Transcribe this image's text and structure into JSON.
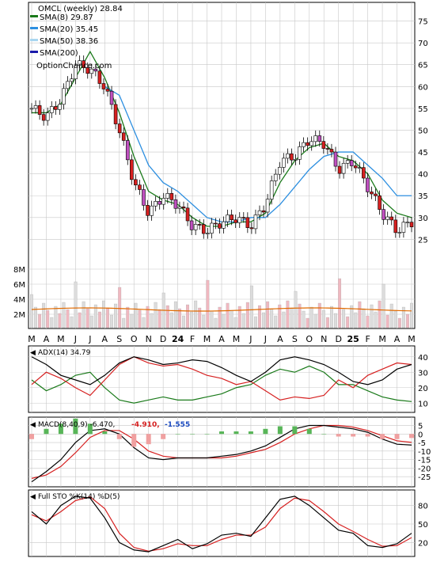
{
  "colors": {
    "up": "#ffffff",
    "down": "#d62020",
    "body_alt": "#c050c0",
    "sma8": "#1a7a1a",
    "sma20": "#2d8fe0",
    "sma50": "#a8d6f0",
    "sma200": "#1a1aaa",
    "sma_red": "#e02020",
    "bb_yellow": "#e6e600",
    "vol_up": "#dcdcdc",
    "vol_down": "#f0b8c0",
    "vol_avg": "#e06a00",
    "grid": "#c8c8c8",
    "adx": "#000000",
    "pdi": "#1a7a1a",
    "mdi": "#d62020",
    "macd": "#000000",
    "signal": "#d62020",
    "hist_pos": "#58b558",
    "hist_neg": "#f0a0a0",
    "stok": "#000000",
    "stod": "#d62020"
  },
  "price_panel": {
    "legend": [
      {
        "label": "OMCL (weekly) 28.84",
        "swatch": ""
      },
      {
        "label": "SMA(8) 29.87",
        "swatch": "#1a7a1a"
      },
      {
        "label": "SMA(20) 35.45",
        "swatch": "#2d8fe0"
      },
      {
        "label": "SMA(50) 38.36",
        "swatch": "#a8d6f0"
      },
      {
        "label": "SMA(200)",
        "swatch": "#1a1aaa"
      }
    ],
    "watermark": "OptionChance.com",
    "y_ticks": [
      75,
      70,
      65,
      60,
      55,
      50,
      45,
      40,
      35,
      30,
      25
    ],
    "vol_ticks": [
      "8M",
      "6M",
      "4M",
      "2M"
    ]
  },
  "x_axis": {
    "labels": [
      "M",
      "A",
      "M",
      "J",
      "J",
      "A",
      "S",
      "O",
      "N",
      "D",
      "24",
      "F",
      "M",
      "A",
      "M",
      "J",
      "J",
      "A",
      "S",
      "O",
      "N",
      "D",
      "25",
      "F",
      "M",
      "A",
      "M"
    ]
  },
  "adx_panel": {
    "label": "ADX(14) 34.79",
    "y_ticks": [
      40,
      30,
      20,
      10
    ]
  },
  "macd_panel": {
    "label": "MACD(8,40,9) -6.470,",
    "val2": "-4.910,",
    "val3": "-1.555",
    "y_ticks": [
      5,
      0,
      -5,
      -10,
      -15,
      -20,
      -25
    ]
  },
  "sto_panel": {
    "label": "Full STO %K(14) %D(5)",
    "y_ticks": [
      80,
      50,
      20
    ]
  },
  "chart_data": {
    "type": "line",
    "title": "OMCL (weekly) 28.84",
    "x": [
      "M",
      "A",
      "M",
      "J",
      "J",
      "A",
      "S",
      "O",
      "N",
      "D",
      "24",
      "F",
      "M",
      "A",
      "M",
      "J",
      "J",
      "A",
      "S",
      "O",
      "N",
      "D",
      "25",
      "F",
      "M",
      "A",
      "M"
    ],
    "ylim": [
      20,
      78
    ],
    "series": [
      {
        "name": "OMCL (weekly) 28.84",
        "values": [
          55,
          53,
          57,
          65,
          64,
          60,
          50,
          38,
          31,
          35,
          33,
          28,
          27,
          29,
          30,
          28,
          33,
          43,
          44,
          48,
          47,
          41,
          43,
          37,
          31,
          27,
          29
        ]
      },
      {
        "name": "SMA(8) 29.87",
        "values": [
          54,
          54,
          56,
          62,
          68,
          62,
          54,
          44,
          36,
          34,
          33,
          30,
          28,
          28,
          29,
          29,
          31,
          38,
          43,
          46,
          47,
          44,
          43,
          40,
          34,
          31,
          30
        ]
      },
      {
        "name": "SMA(20) 35.45",
        "values": [
          null,
          null,
          null,
          null,
          null,
          60,
          58,
          50,
          42,
          38,
          36,
          33,
          30,
          29,
          29,
          30,
          30,
          33,
          37,
          41,
          44,
          45,
          45,
          42,
          39,
          35,
          35
        ]
      },
      {
        "name": "SMA(50) 38.36",
        "values": [
          null,
          null,
          null,
          null,
          null,
          null,
          null,
          null,
          null,
          null,
          null,
          null,
          null,
          null,
          null,
          null,
          null,
          null,
          null,
          null,
          null,
          null,
          null,
          null,
          null,
          null,
          38
        ]
      }
    ],
    "adx": {
      "label": "ADX(14) 34.79",
      "ylim": [
        5,
        45
      ],
      "adx": [
        40,
        35,
        28,
        25,
        22,
        28,
        36,
        40,
        38,
        35,
        36,
        38,
        37,
        33,
        28,
        24,
        30,
        38,
        40,
        38,
        35,
        30,
        24,
        22,
        25,
        32,
        35
      ],
      "pdi": [
        25,
        18,
        22,
        28,
        30,
        20,
        12,
        10,
        12,
        14,
        12,
        12,
        14,
        16,
        20,
        22,
        28,
        32,
        30,
        34,
        30,
        22,
        22,
        18,
        14,
        12,
        11
      ],
      "mdi": [
        22,
        30,
        26,
        20,
        15,
        25,
        35,
        40,
        36,
        34,
        35,
        32,
        28,
        26,
        22,
        24,
        18,
        12,
        14,
        13,
        15,
        25,
        20,
        28,
        32,
        36,
        35
      ]
    },
    "macd": {
      "label": "MACD(8,40,9) -6.470, -4.910, -1.555",
      "ylim": [
        -30,
        8
      ],
      "macd": [
        -28,
        -22,
        -15,
        -5,
        2,
        3,
        0,
        -8,
        -14,
        -15,
        -14,
        -14,
        -14,
        -13,
        -12,
        -10,
        -7,
        -2,
        3,
        5,
        5,
        4,
        3,
        1,
        -3,
        -6,
        -6.47
      ],
      "signal": [
        -26,
        -24,
        -19,
        -11,
        -2,
        2,
        2,
        -3,
        -10,
        -13,
        -14,
        -14,
        -14,
        -14,
        -13,
        -11,
        -9,
        -5,
        0,
        3,
        5,
        5,
        4,
        2,
        -1,
        -4,
        -4.91
      ]
    },
    "sto": {
      "label": "Full STO %K(14) %D(5)",
      "ylim": [
        0,
        100
      ],
      "k": [
        70,
        50,
        80,
        95,
        92,
        60,
        20,
        8,
        5,
        15,
        25,
        10,
        18,
        32,
        35,
        30,
        60,
        90,
        95,
        80,
        60,
        40,
        35,
        15,
        12,
        18,
        35
      ],
      "d": [
        65,
        55,
        70,
        88,
        94,
        75,
        35,
        12,
        6,
        10,
        18,
        15,
        15,
        25,
        32,
        32,
        45,
        75,
        92,
        88,
        70,
        50,
        38,
        25,
        14,
        15,
        28
      ]
    }
  }
}
